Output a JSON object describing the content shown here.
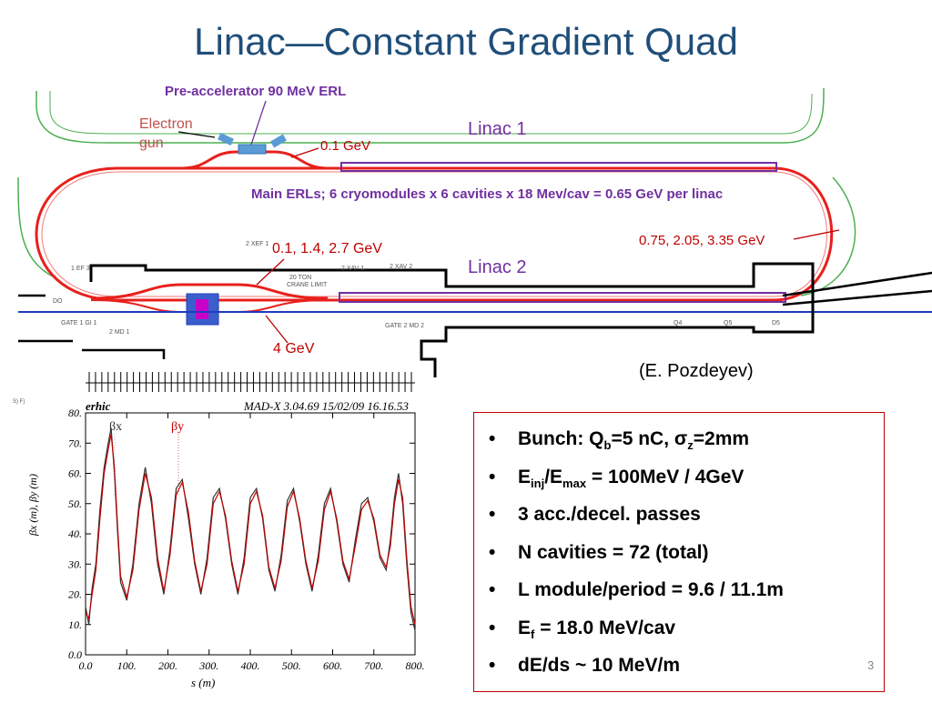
{
  "title": "Linac—Constant Gradient Quad",
  "diagram": {
    "pre_accelerator": "Pre-accelerator 90 MeV ERL",
    "electron": "Electron",
    "gun": "gun",
    "linac1": "Linac 1",
    "linac2": "Linac 2",
    "energy_0_1": "0.1 GeV",
    "main_erls": "Main ERLs; 6 cryomodules x 6 cavities x 18 Mev/cav = 0.65 GeV per linac",
    "energies_right": "0.75, 2.05, 3.35 GeV",
    "energies_left": "0.1, 1.4, 2.7 GeV",
    "energy_4": "4 GeV",
    "credit": "(E. Pozdeyev)",
    "bg_labels": [
      "2 XEF 1",
      "2 XAV 1",
      "2 XAV 2",
      "1 EF 3",
      "20 TON",
      "CRANE LIMIT",
      "GATE 1 GI 1",
      "2 MD 1",
      "GATE 2 MD 2",
      "Q4",
      "Q5",
      "D5",
      "GATE 2 GE 2",
      "TOL",
      "DO"
    ],
    "colors": {
      "beamline": "#e8201c",
      "linac": "#7030a0",
      "wall_green": "#4caf50",
      "blue_line": "#1f3cc0"
    }
  },
  "plot": {
    "header_left": "erhic",
    "header_right": "MAD-X 3.04.69  15/02/09 16.16.53",
    "ylabel": "βx (m), βy (m)",
    "xlabel": "s (m)",
    "legend_x": "βx",
    "legend_y": "βy",
    "side_note": "S) F)"
  },
  "chart_data": {
    "type": "line",
    "title": "",
    "xlabel": "s (m)",
    "ylabel": "βx (m), βy (m)",
    "xlim": [
      0,
      800
    ],
    "ylim": [
      0,
      80
    ],
    "xticks": [
      "0.0",
      "100.",
      "200.",
      "300.",
      "400.",
      "500.",
      "600.",
      "700.",
      "800."
    ],
    "yticks": [
      "0.0",
      "10.",
      "20.",
      "30.",
      "40.",
      "50.",
      "60.",
      "70.",
      "80."
    ],
    "legend": [
      "βx",
      "βy"
    ],
    "series": [
      {
        "name": "βx",
        "color": "#333333",
        "x": [
          0,
          8,
          16,
          25,
          35,
          45,
          55,
          62,
          70,
          78,
          85,
          100,
          115,
          130,
          145,
          160,
          175,
          190,
          205,
          220,
          235,
          250,
          265,
          280,
          295,
          310,
          325,
          340,
          355,
          370,
          385,
          400,
          415,
          430,
          445,
          460,
          475,
          490,
          505,
          520,
          535,
          550,
          565,
          580,
          595,
          610,
          625,
          640,
          655,
          670,
          685,
          700,
          715,
          730,
          740,
          750,
          760,
          770,
          780,
          790,
          800
        ],
        "y": [
          16,
          10,
          22,
          30,
          48,
          62,
          70,
          75,
          60,
          40,
          24,
          18,
          30,
          50,
          62,
          50,
          30,
          20,
          35,
          55,
          58,
          45,
          30,
          20,
          32,
          52,
          55,
          45,
          30,
          20,
          32,
          52,
          55,
          45,
          28,
          21,
          33,
          51,
          55,
          44,
          30,
          21,
          33,
          50,
          55,
          44,
          30,
          24,
          38,
          50,
          52,
          44,
          32,
          28,
          38,
          52,
          60,
          50,
          30,
          14,
          8
        ]
      },
      {
        "name": "βy",
        "color": "#c00000",
        "x": [
          0,
          8,
          16,
          25,
          35,
          45,
          55,
          62,
          70,
          78,
          85,
          100,
          115,
          130,
          145,
          160,
          175,
          190,
          205,
          220,
          235,
          250,
          265,
          280,
          295,
          310,
          325,
          340,
          355,
          370,
          385,
          400,
          415,
          430,
          445,
          460,
          475,
          490,
          505,
          520,
          535,
          550,
          565,
          580,
          595,
          610,
          625,
          640,
          655,
          670,
          685,
          700,
          715,
          730,
          740,
          750,
          760,
          770,
          780,
          790,
          800
        ],
        "y": [
          14,
          12,
          20,
          28,
          45,
          60,
          68,
          73,
          62,
          42,
          26,
          19,
          28,
          48,
          60,
          52,
          32,
          21,
          33,
          53,
          57,
          47,
          31,
          21,
          30,
          50,
          54,
          46,
          31,
          21,
          30,
          50,
          54,
          46,
          29,
          22,
          31,
          49,
          54,
          45,
          31,
          22,
          31,
          48,
          54,
          45,
          31,
          25,
          36,
          48,
          51,
          45,
          33,
          29,
          36,
          50,
          58,
          52,
          32,
          16,
          10
        ]
      }
    ]
  },
  "bullets": [
    {
      "parts": [
        [
          "Bunch: Q",
          ""
        ],
        [
          "b",
          "sub"
        ],
        [
          "=5 nC, σ",
          ""
        ],
        [
          "z",
          "sub"
        ],
        [
          "=2mm",
          ""
        ]
      ]
    },
    {
      "parts": [
        [
          "E",
          ""
        ],
        [
          "inj",
          "sub"
        ],
        [
          "/E",
          ""
        ],
        [
          "max",
          "sub"
        ],
        [
          " = 100MeV / 4GeV",
          ""
        ]
      ]
    },
    {
      "parts": [
        [
          "3 acc./decel. passes",
          ""
        ]
      ]
    },
    {
      "parts": [
        [
          "N cavities = 72 (total)",
          ""
        ]
      ]
    },
    {
      "parts": [
        [
          "L module/period = 9.6 / 11.1m",
          ""
        ]
      ]
    },
    {
      "parts": [
        [
          "E",
          ""
        ],
        [
          "f",
          "sub"
        ],
        [
          " = 18.0 MeV/cav",
          ""
        ]
      ]
    },
    {
      "parts": [
        [
          "dE/ds ~ 10 MeV/m",
          ""
        ]
      ]
    }
  ],
  "bullet_char": "•",
  "page_number": "3"
}
